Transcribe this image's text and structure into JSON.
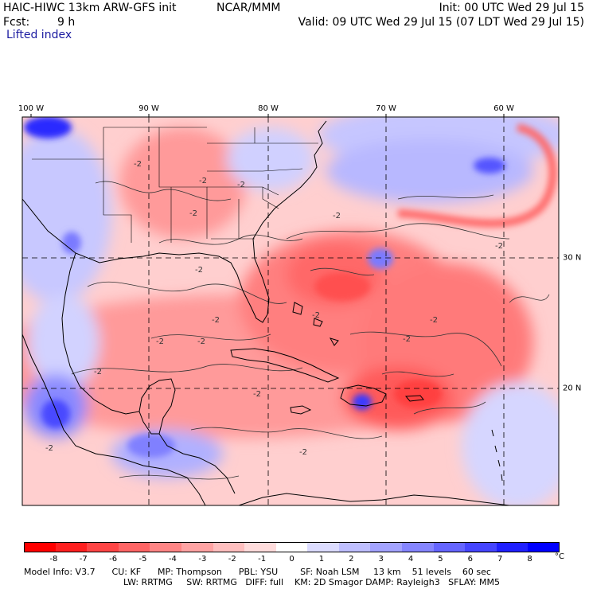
{
  "header": {
    "model": "HAIC-HIWC 13km ARW-GFS init",
    "org": "NCAR/MMM",
    "init": "Init: 00 UTC Wed 29 Jul 15",
    "fcst_label": "Fcst:",
    "fcst_value": "9 h",
    "valid": "Valid: 09 UTC Wed 29 Jul 15 (07 LDT Wed 29 Jul 15)",
    "field": "Lifted index"
  },
  "map": {
    "lon_labels": [
      "100 W",
      "90 W",
      "80 W",
      "70 W",
      "60 W"
    ],
    "lat_labels": [
      "30 N",
      "20 N"
    ],
    "contour_labels": [
      "-2",
      "-2",
      "-2",
      "-2",
      "-2",
      "-2",
      "-2",
      "-2",
      "-2",
      "-2",
      "-2",
      "-2",
      "-2",
      "-2",
      "-2",
      "-2",
      "-2"
    ]
  },
  "colorbar": {
    "ticks": [
      "-8",
      "-7",
      "-6",
      "-5",
      "-4",
      "-3",
      "-2",
      "-1",
      "0",
      "1",
      "2",
      "3",
      "4",
      "5",
      "6",
      "7",
      "8"
    ],
    "unit": "°C",
    "colors": [
      "#ff0000",
      "#ff2020",
      "#ff4545",
      "#ff6565",
      "#ff8585",
      "#ffa3a3",
      "#ffbfbf",
      "#ffdcdc",
      "#ffffff",
      "#dcdcff",
      "#bfbfff",
      "#a3a3ff",
      "#8585ff",
      "#6565ff",
      "#4545ff",
      "#2020ff",
      "#0000ff"
    ]
  },
  "info": {
    "line1": "Model Info: V3.7      CU: KF      MP: Thompson      PBL: YSU        SF: Noah LSM     13 km    51 levels    60 sec",
    "line2": "LW: RRTMG     SW: RRTMG   DIFF: full    KM: 2D Smagor DAMP: Rayleigh3   SFLAY: MM5"
  }
}
